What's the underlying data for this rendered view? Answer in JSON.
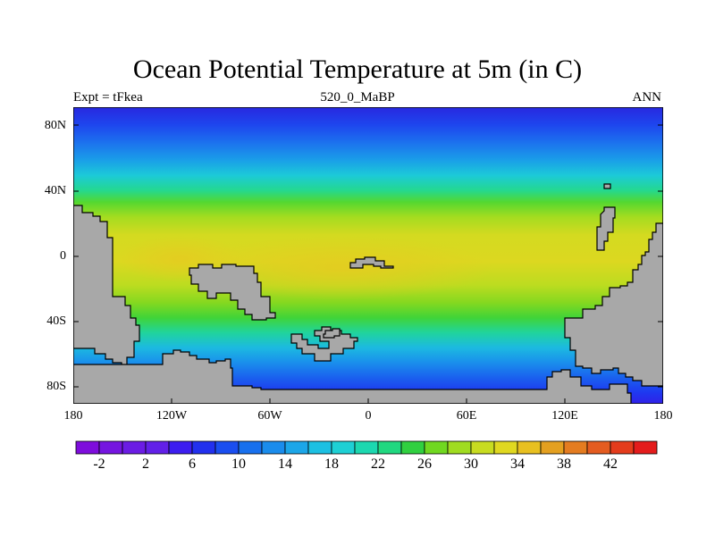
{
  "title": "Ocean Potential Temperature at 5m (in C)",
  "subtitle_left": "Expt = tFkea",
  "subtitle_center": "520_0_MaBP",
  "subtitle_right": "ANN",
  "colors": {
    "land": "#a8a8a8",
    "coastline": "#000000",
    "frame": "#000000",
    "palette": [
      "#7e0ddc",
      "#7515e0",
      "#6b1ce4",
      "#6220e8",
      "#3c1df0",
      "#2230ee",
      "#1a4ef0",
      "#1870ee",
      "#1a8cec",
      "#1ca6e8",
      "#1cc0e2",
      "#1ed0d4",
      "#1cd8b0",
      "#20d880",
      "#30d040",
      "#70d820",
      "#a0dc20",
      "#c8dc20",
      "#e0d820",
      "#e8c020",
      "#e4a020",
      "#e47c20",
      "#e45c20",
      "#e43c1c",
      "#e41c1c"
    ]
  },
  "axes": {
    "y_ticks": [
      "80N",
      "40N",
      "0",
      "40S",
      "80S"
    ],
    "x_ticks": [
      "180",
      "120W",
      "60W",
      "0",
      "60E",
      "120E",
      "180"
    ]
  },
  "colorbar": {
    "labels": [
      "-2",
      "2",
      "6",
      "10",
      "14",
      "18",
      "22",
      "26",
      "30",
      "34",
      "38",
      "42"
    ]
  }
}
